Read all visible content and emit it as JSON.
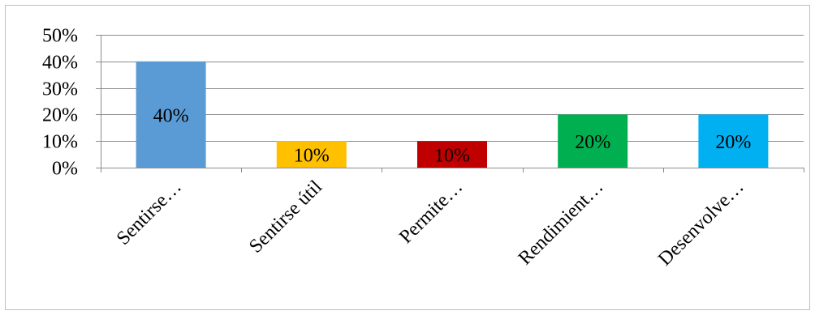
{
  "chart_data": {
    "type": "bar",
    "categories": [
      "Sentirse…",
      "Sentirse útil",
      "Permite…",
      "Rendimient…",
      "Desenvolve…"
    ],
    "values": [
      40,
      10,
      10,
      20,
      20
    ],
    "data_labels": [
      "40%",
      "10%",
      "10%",
      "20%",
      "20%"
    ],
    "colors": [
      "#5b9bd5",
      "#ffc000",
      "#c00000",
      "#00b050",
      "#00b0f0"
    ],
    "yticks": [
      "0%",
      "10%",
      "20%",
      "30%",
      "40%",
      "50%"
    ],
    "ylim": [
      0,
      50
    ],
    "grid": true,
    "legend": "none"
  }
}
